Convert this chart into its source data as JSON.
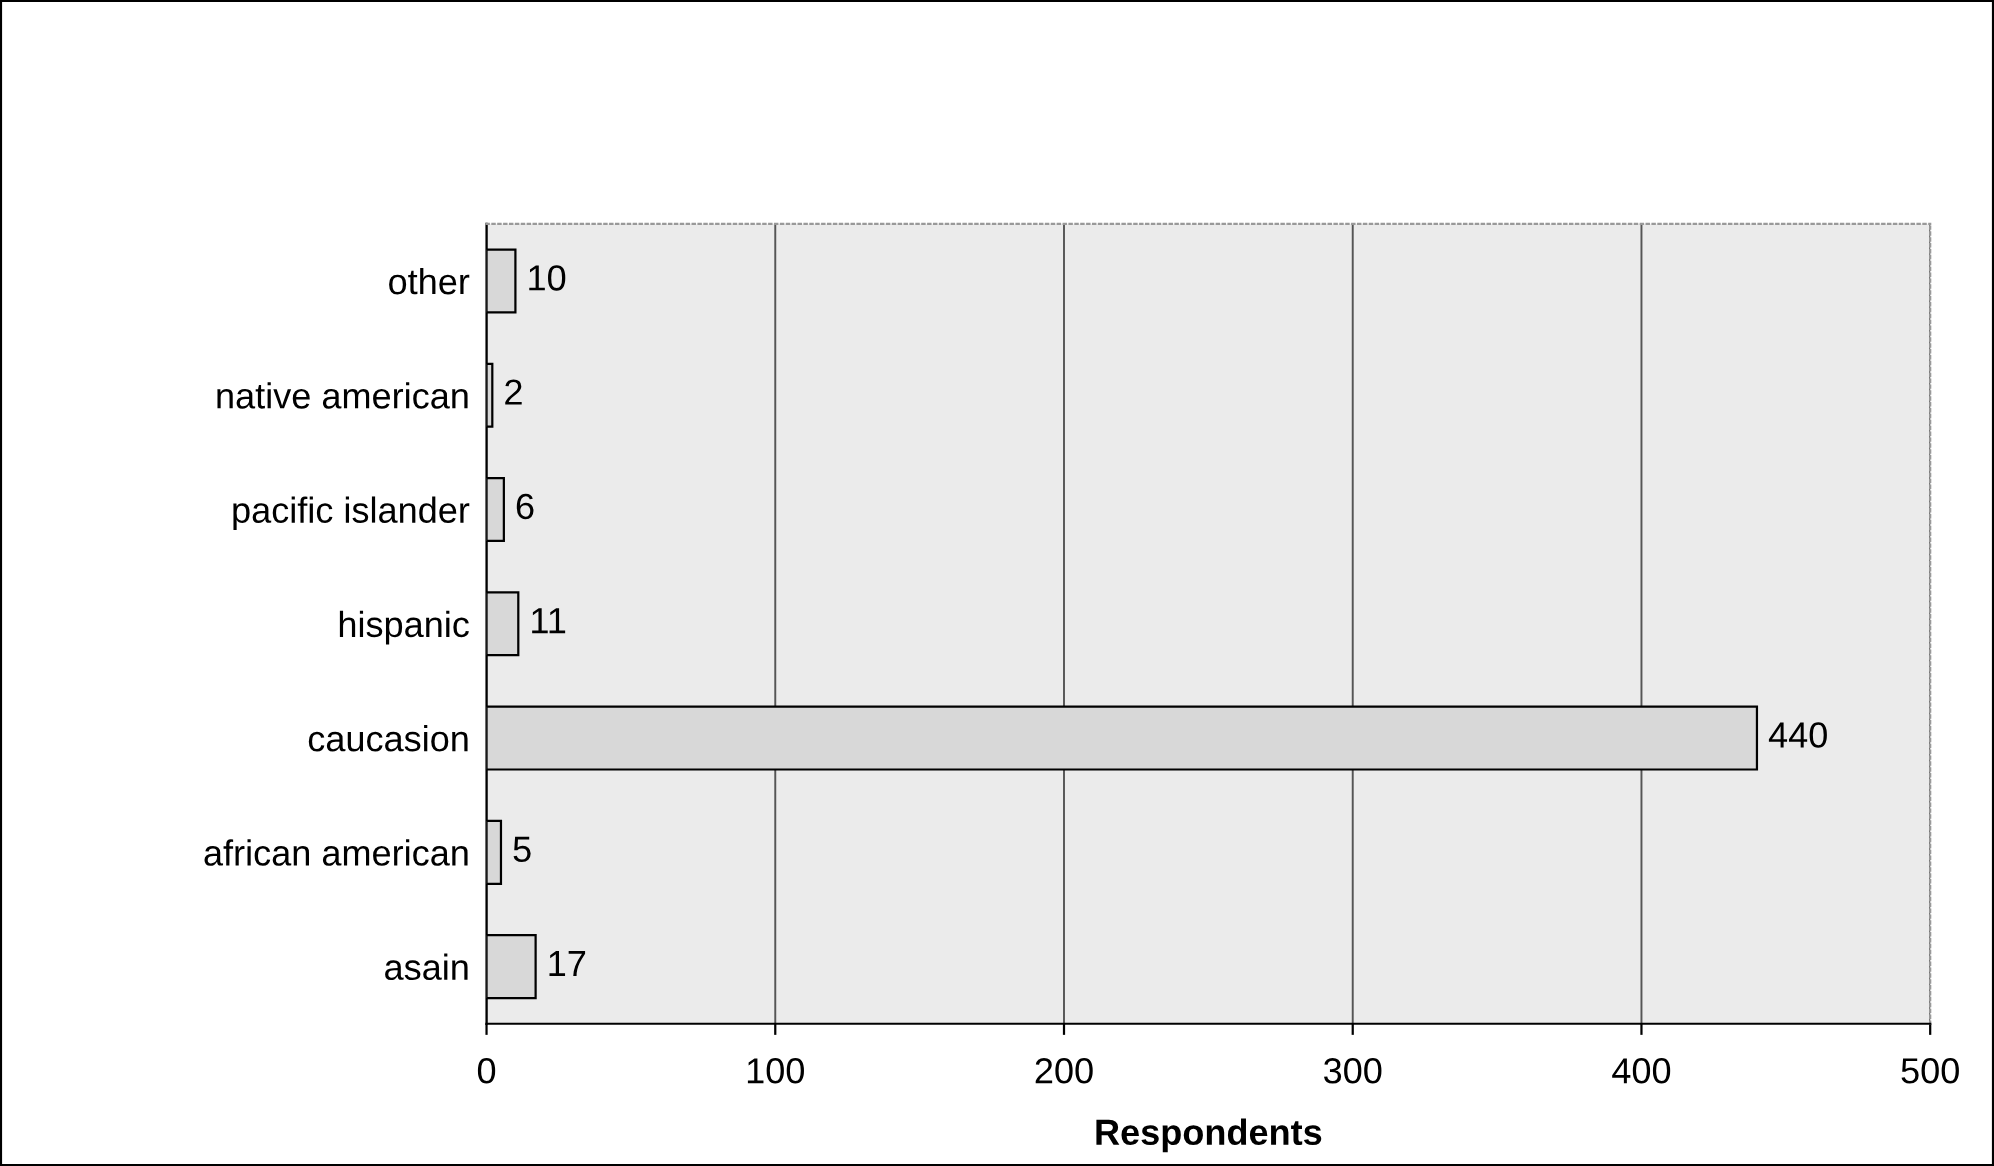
{
  "chart_data": {
    "type": "bar",
    "orientation": "horizontal",
    "xlabel": "Respondents",
    "categories": [
      "other",
      "native american",
      "pacific islander",
      "hispanic",
      "caucasion",
      "african american",
      "asain"
    ],
    "values": [
      10,
      2,
      6,
      11,
      440,
      5,
      17
    ],
    "color": "#d8d8d8",
    "xlim": [
      0,
      500
    ],
    "xticks": [
      0,
      100,
      200,
      300,
      400,
      500
    ],
    "grid": "x",
    "data_labels": true
  }
}
